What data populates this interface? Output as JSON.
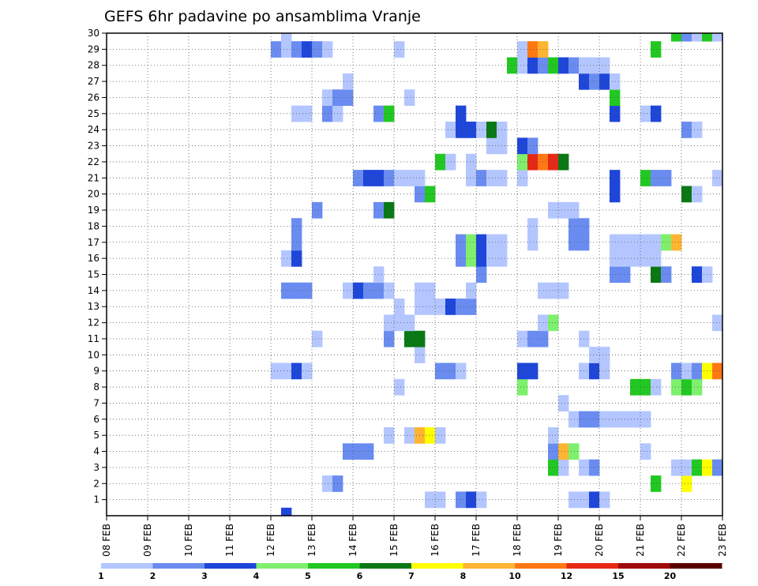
{
  "chart_data": {
    "type": "heatmap",
    "title": "GEFS 6hr padavine po ansamblima Vranje",
    "xlabel": "",
    "ylabel": "",
    "x_ticks": [
      "08 FEB",
      "09 FEB",
      "10 FEB",
      "11 FEB",
      "12 FEB",
      "13 FEB",
      "14 FEB",
      "15 FEB",
      "16 FEB",
      "17 FEB",
      "18 FEB",
      "19 FEB",
      "20 FEB",
      "21 FEB",
      "22 FEB",
      "23 FEB"
    ],
    "y_ticks": [
      1,
      2,
      3,
      4,
      5,
      6,
      7,
      8,
      9,
      10,
      11,
      12,
      13,
      14,
      15,
      16,
      17,
      18,
      19,
      20,
      21,
      22,
      23,
      24,
      25,
      26,
      27,
      28,
      29,
      30
    ],
    "xlim": [
      0,
      60
    ],
    "ylim": [
      0,
      30
    ],
    "grid": true,
    "colorbar": {
      "thresholds": [
        1,
        2,
        3,
        4,
        5,
        6,
        7,
        8,
        10,
        12,
        15,
        20
      ],
      "labels": [
        "1",
        "2",
        "3",
        "4",
        "5",
        "6",
        "7",
        "8",
        "10",
        "12",
        "15",
        "20"
      ],
      "colors": [
        "#b4c6ff",
        "#6a8cf0",
        "#1e46d8",
        "#7ef06e",
        "#22c822",
        "#0a7814",
        "#ffff00",
        "#ffb432",
        "#ff7814",
        "#e62814",
        "#a00a0a",
        "#5a0000"
      ],
      "placement": "bottom"
    },
    "cells": [
      [
        17,
        0,
        2
      ],
      [
        31,
        1,
        0
      ],
      [
        32,
        1,
        0
      ],
      [
        34,
        1,
        1
      ],
      [
        35,
        1,
        2
      ],
      [
        36,
        1,
        0
      ],
      [
        45,
        1,
        0
      ],
      [
        46,
        1,
        0
      ],
      [
        47,
        1,
        2
      ],
      [
        48,
        1,
        0
      ],
      [
        21,
        2,
        0
      ],
      [
        22,
        2,
        1
      ],
      [
        53,
        2,
        4
      ],
      [
        56,
        2,
        6
      ],
      [
        43,
        3,
        4
      ],
      [
        44,
        3,
        0
      ],
      [
        46,
        3,
        0
      ],
      [
        47,
        3,
        1
      ],
      [
        55,
        3,
        0
      ],
      [
        56,
        3,
        0
      ],
      [
        57,
        3,
        4
      ],
      [
        58,
        3,
        6
      ],
      [
        59,
        3,
        1
      ],
      [
        23,
        4,
        1
      ],
      [
        24,
        4,
        1
      ],
      [
        25,
        4,
        1
      ],
      [
        43,
        4,
        1
      ],
      [
        44,
        4,
        7
      ],
      [
        45,
        4,
        3
      ],
      [
        52,
        4,
        0
      ],
      [
        60,
        4,
        0
      ],
      [
        27,
        5,
        0
      ],
      [
        29,
        5,
        0
      ],
      [
        30,
        5,
        7
      ],
      [
        31,
        5,
        6
      ],
      [
        32,
        5,
        0
      ],
      [
        43,
        5,
        0
      ],
      [
        45,
        6,
        0
      ],
      [
        46,
        6,
        1
      ],
      [
        47,
        6,
        1
      ],
      [
        48,
        6,
        0
      ],
      [
        49,
        6,
        0
      ],
      [
        50,
        6,
        0
      ],
      [
        51,
        6,
        0
      ],
      [
        52,
        6,
        0
      ],
      [
        44,
        7,
        0
      ],
      [
        28,
        8,
        0
      ],
      [
        40,
        8,
        3
      ],
      [
        51,
        8,
        4
      ],
      [
        52,
        8,
        4
      ],
      [
        53,
        8,
        0
      ],
      [
        55,
        8,
        3
      ],
      [
        56,
        8,
        4
      ],
      [
        57,
        8,
        3
      ],
      [
        16,
        9,
        0
      ],
      [
        17,
        9,
        0
      ],
      [
        18,
        9,
        2
      ],
      [
        19,
        9,
        0
      ],
      [
        32,
        9,
        1
      ],
      [
        33,
        9,
        1
      ],
      [
        34,
        9,
        0
      ],
      [
        40,
        9,
        2
      ],
      [
        41,
        9,
        2
      ],
      [
        46,
        9,
        0
      ],
      [
        47,
        9,
        2
      ],
      [
        48,
        9,
        0
      ],
      [
        55,
        9,
        1
      ],
      [
        56,
        9,
        0
      ],
      [
        57,
        9,
        1
      ],
      [
        58,
        9,
        6
      ],
      [
        59,
        9,
        8
      ],
      [
        30,
        10,
        0
      ],
      [
        47,
        10,
        0
      ],
      [
        48,
        10,
        0
      ],
      [
        20,
        11,
        0
      ],
      [
        27,
        11,
        1
      ],
      [
        29,
        11,
        5
      ],
      [
        30,
        11,
        5
      ],
      [
        40,
        11,
        0
      ],
      [
        41,
        11,
        1
      ],
      [
        42,
        11,
        1
      ],
      [
        46,
        11,
        0
      ],
      [
        27,
        12,
        0
      ],
      [
        28,
        12,
        0
      ],
      [
        29,
        12,
        0
      ],
      [
        42,
        12,
        0
      ],
      [
        43,
        12,
        3
      ],
      [
        59,
        12,
        0
      ],
      [
        28,
        13,
        0
      ],
      [
        30,
        13,
        0
      ],
      [
        31,
        13,
        0
      ],
      [
        32,
        13,
        0
      ],
      [
        33,
        13,
        2
      ],
      [
        34,
        13,
        1
      ],
      [
        35,
        13,
        1
      ],
      [
        17,
        14,
        1
      ],
      [
        18,
        14,
        1
      ],
      [
        19,
        14,
        1
      ],
      [
        23,
        14,
        0
      ],
      [
        24,
        14,
        2
      ],
      [
        25,
        14,
        1
      ],
      [
        26,
        14,
        1
      ],
      [
        27,
        14,
        0
      ],
      [
        30,
        14,
        0
      ],
      [
        31,
        14,
        0
      ],
      [
        35,
        14,
        0
      ],
      [
        42,
        14,
        0
      ],
      [
        43,
        14,
        0
      ],
      [
        44,
        14,
        0
      ],
      [
        26,
        15,
        0
      ],
      [
        36,
        15,
        1
      ],
      [
        49,
        15,
        1
      ],
      [
        50,
        15,
        1
      ],
      [
        53,
        15,
        5
      ],
      [
        54,
        15,
        1
      ],
      [
        57,
        15,
        2
      ],
      [
        58,
        15,
        0
      ],
      [
        17,
        16,
        0
      ],
      [
        18,
        16,
        2
      ],
      [
        34,
        16,
        1
      ],
      [
        35,
        16,
        3
      ],
      [
        36,
        16,
        2
      ],
      [
        37,
        16,
        0
      ],
      [
        38,
        16,
        0
      ],
      [
        49,
        16,
        0
      ],
      [
        50,
        16,
        0
      ],
      [
        51,
        16,
        0
      ],
      [
        52,
        16,
        0
      ],
      [
        53,
        16,
        0
      ],
      [
        18,
        17,
        1
      ],
      [
        34,
        17,
        1
      ],
      [
        35,
        17,
        3
      ],
      [
        36,
        17,
        2
      ],
      [
        37,
        17,
        0
      ],
      [
        38,
        17,
        0
      ],
      [
        41,
        17,
        0
      ],
      [
        45,
        17,
        1
      ],
      [
        46,
        17,
        1
      ],
      [
        49,
        17,
        0
      ],
      [
        50,
        17,
        0
      ],
      [
        51,
        17,
        0
      ],
      [
        52,
        17,
        0
      ],
      [
        53,
        17,
        0
      ],
      [
        54,
        17,
        3
      ],
      [
        55,
        17,
        7
      ],
      [
        18,
        18,
        1
      ],
      [
        41,
        18,
        0
      ],
      [
        45,
        18,
        1
      ],
      [
        46,
        18,
        1
      ],
      [
        20,
        19,
        1
      ],
      [
        26,
        19,
        1
      ],
      [
        27,
        19,
        5
      ],
      [
        43,
        19,
        0
      ],
      [
        44,
        19,
        0
      ],
      [
        45,
        19,
        0
      ],
      [
        30,
        20,
        1
      ],
      [
        31,
        20,
        4
      ],
      [
        49,
        20,
        2
      ],
      [
        56,
        20,
        5
      ],
      [
        57,
        20,
        0
      ],
      [
        24,
        21,
        1
      ],
      [
        25,
        21,
        2
      ],
      [
        26,
        21,
        2
      ],
      [
        27,
        21,
        1
      ],
      [
        28,
        21,
        0
      ],
      [
        29,
        21,
        0
      ],
      [
        30,
        21,
        0
      ],
      [
        35,
        21,
        0
      ],
      [
        36,
        21,
        1
      ],
      [
        37,
        21,
        0
      ],
      [
        38,
        21,
        0
      ],
      [
        40,
        21,
        0
      ],
      [
        49,
        21,
        2
      ],
      [
        52,
        21,
        4
      ],
      [
        53,
        21,
        1
      ],
      [
        54,
        21,
        1
      ],
      [
        59,
        21,
        0
      ],
      [
        60,
        21,
        0
      ],
      [
        32,
        22,
        4
      ],
      [
        33,
        22,
        0
      ],
      [
        35,
        22,
        0
      ],
      [
        40,
        22,
        3
      ],
      [
        41,
        22,
        9
      ],
      [
        42,
        22,
        8
      ],
      [
        43,
        22,
        9
      ],
      [
        44,
        22,
        5
      ],
      [
        37,
        23,
        0
      ],
      [
        38,
        23,
        0
      ],
      [
        40,
        23,
        2
      ],
      [
        41,
        23,
        1
      ],
      [
        33,
        24,
        0
      ],
      [
        34,
        24,
        2
      ],
      [
        35,
        24,
        2
      ],
      [
        36,
        24,
        0
      ],
      [
        37,
        24,
        5
      ],
      [
        38,
        24,
        0
      ],
      [
        56,
        24,
        1
      ],
      [
        57,
        24,
        0
      ],
      [
        18,
        25,
        0
      ],
      [
        19,
        25,
        0
      ],
      [
        21,
        25,
        1
      ],
      [
        22,
        25,
        0
      ],
      [
        26,
        25,
        1
      ],
      [
        27,
        25,
        4
      ],
      [
        34,
        25,
        2
      ],
      [
        49,
        25,
        2
      ],
      [
        52,
        25,
        0
      ],
      [
        53,
        25,
        2
      ],
      [
        21,
        26,
        0
      ],
      [
        22,
        26,
        1
      ],
      [
        23,
        26,
        1
      ],
      [
        29,
        26,
        0
      ],
      [
        49,
        26,
        4
      ],
      [
        23,
        27,
        0
      ],
      [
        46,
        27,
        2
      ],
      [
        47,
        27,
        1
      ],
      [
        48,
        27,
        2
      ],
      [
        49,
        27,
        0
      ],
      [
        39,
        28,
        4
      ],
      [
        40,
        28,
        0
      ],
      [
        41,
        28,
        2
      ],
      [
        42,
        28,
        1
      ],
      [
        43,
        28,
        4
      ],
      [
        44,
        28,
        2
      ],
      [
        45,
        28,
        1
      ],
      [
        46,
        28,
        0
      ],
      [
        47,
        28,
        0
      ],
      [
        48,
        28,
        0
      ],
      [
        16,
        29,
        1
      ],
      [
        17,
        29,
        0
      ],
      [
        18,
        29,
        1
      ],
      [
        19,
        29,
        2
      ],
      [
        20,
        29,
        1
      ],
      [
        21,
        29,
        0
      ],
      [
        28,
        29,
        0
      ],
      [
        40,
        29,
        0
      ],
      [
        41,
        29,
        8
      ],
      [
        42,
        29,
        7
      ],
      [
        53,
        29,
        4
      ],
      [
        17,
        30,
        0
      ],
      [
        55,
        30,
        4
      ],
      [
        56,
        30,
        1
      ],
      [
        57,
        30,
        0
      ],
      [
        58,
        30,
        4
      ],
      [
        59,
        30,
        0
      ]
    ]
  }
}
